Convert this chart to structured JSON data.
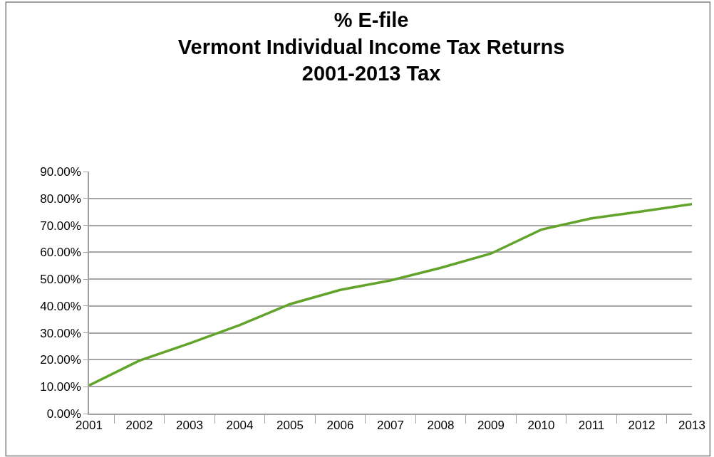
{
  "chart_data": {
    "type": "line",
    "title": "% E-file\nVermont Individual Income Tax Returns\n2001-2013 Tax",
    "categories": [
      "2001",
      "2002",
      "2003",
      "2004",
      "2005",
      "2006",
      "2007",
      "2008",
      "2009",
      "2010",
      "2011",
      "2012",
      "2013"
    ],
    "series": [
      {
        "color": "#62a42b",
        "values": [
          10.5,
          19.7,
          26.1,
          32.9,
          40.7,
          46.0,
          49.5,
          54.2,
          59.5,
          68.4,
          72.6,
          75.2,
          77.9
        ]
      }
    ],
    "ylim": [
      0,
      90
    ],
    "yticks": [
      {
        "value": 0,
        "label": "0.00%"
      },
      {
        "value": 10,
        "label": "10.00%"
      },
      {
        "value": 20,
        "label": "20.00%"
      },
      {
        "value": 30,
        "label": "30.00%"
      },
      {
        "value": 40,
        "label": "40.00%"
      },
      {
        "value": 50,
        "label": "50.00%"
      },
      {
        "value": 60,
        "label": "60.00%"
      },
      {
        "value": 70,
        "label": "70.00%"
      },
      {
        "value": 80,
        "label": "80.00%"
      },
      {
        "value": 90,
        "label": "90.00%"
      }
    ],
    "grid": "y",
    "marker": "none",
    "line_style": "solid"
  }
}
